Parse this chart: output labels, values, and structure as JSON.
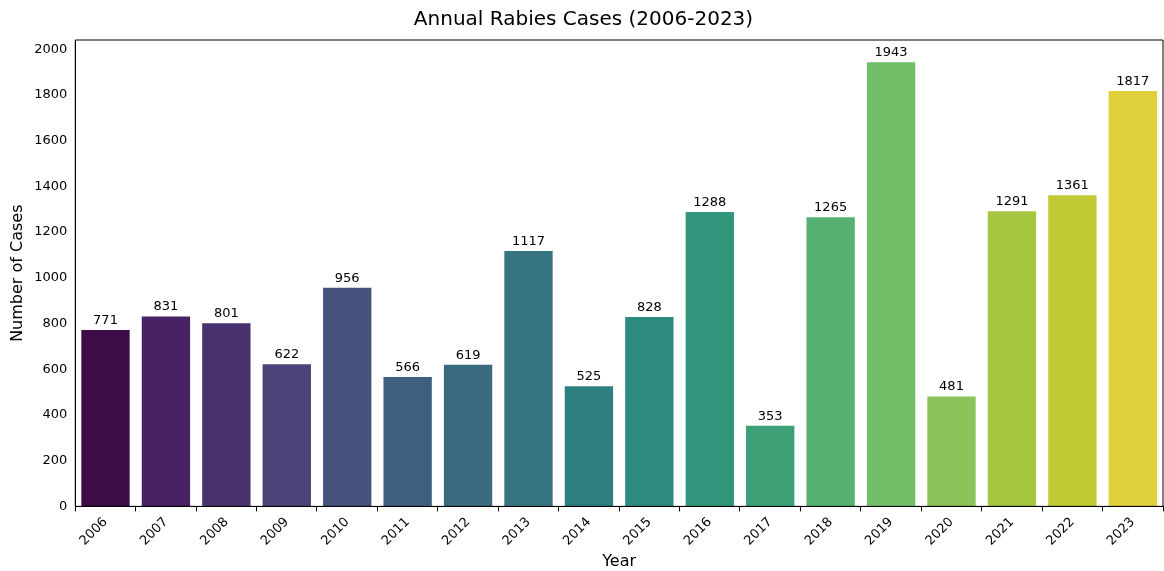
{
  "chart_data": {
    "type": "bar",
    "title": "Annual Rabies Cases (2006-2023)",
    "xlabel": "Year",
    "ylabel": "Number of Cases",
    "categories": [
      "2006",
      "2007",
      "2008",
      "2009",
      "2010",
      "2011",
      "2012",
      "2013",
      "2014",
      "2015",
      "2016",
      "2017",
      "2018",
      "2019",
      "2020",
      "2021",
      "2022",
      "2023"
    ],
    "values": [
      771,
      831,
      801,
      622,
      956,
      566,
      619,
      1117,
      525,
      828,
      1288,
      353,
      1265,
      1943,
      481,
      1291,
      1361,
      1817
    ],
    "colors": [
      "#3e0d48",
      "#472163",
      "#49336f",
      "#4a4478",
      "#45527c",
      "#3f5f80",
      "#3a6a80",
      "#367580",
      "#307f80",
      "#2d8a7f",
      "#31967c",
      "#3ea077",
      "#56b070",
      "#72bd68",
      "#8bc35a",
      "#a6c642",
      "#c1c934",
      "#e0d03c"
    ],
    "ylim": [
      0,
      2040
    ],
    "yticks": [
      0,
      200,
      400,
      600,
      800,
      1000,
      1200,
      1400,
      1600,
      1800,
      2000
    ],
    "data_labels": true,
    "grid": false,
    "legend": false
  }
}
